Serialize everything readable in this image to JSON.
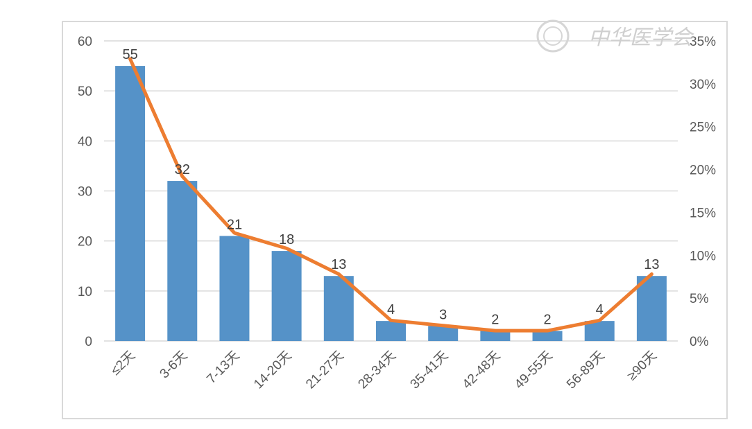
{
  "chart_data": {
    "type": "bar+line",
    "categories": [
      "≤2天",
      "3-6天",
      "7-13天",
      "14-20天",
      "21-27天",
      "28-34天",
      "35-41天",
      "42-48天",
      "49-55天",
      "56-89天",
      "≥90天"
    ],
    "series": [
      {
        "type": "bar",
        "axis": "left",
        "values": [
          55,
          32,
          21,
          18,
          13,
          4,
          3,
          2,
          2,
          4,
          13
        ],
        "data_labels": [
          "55",
          "32",
          "21",
          "18",
          "13",
          "4",
          "3",
          "2",
          "2",
          "4",
          "13"
        ]
      },
      {
        "type": "line",
        "axis": "right",
        "values": [
          32.9,
          19.2,
          12.6,
          10.8,
          7.8,
          2.4,
          1.8,
          1.2,
          1.2,
          2.4,
          7.8
        ]
      }
    ],
    "y_left": {
      "min": 0,
      "max": 60,
      "ticks": [
        "0",
        "10",
        "20",
        "30",
        "40",
        "50",
        "60"
      ]
    },
    "y_right": {
      "min": 0,
      "max": 35,
      "ticks": [
        "0%",
        "5%",
        "10%",
        "15%",
        "20%",
        "25%",
        "30%",
        "35%"
      ]
    },
    "grid": true,
    "colors": {
      "bar": "#5592c8",
      "line": "#ed7d31"
    }
  },
  "watermark": {
    "text": "中华医学会"
  }
}
